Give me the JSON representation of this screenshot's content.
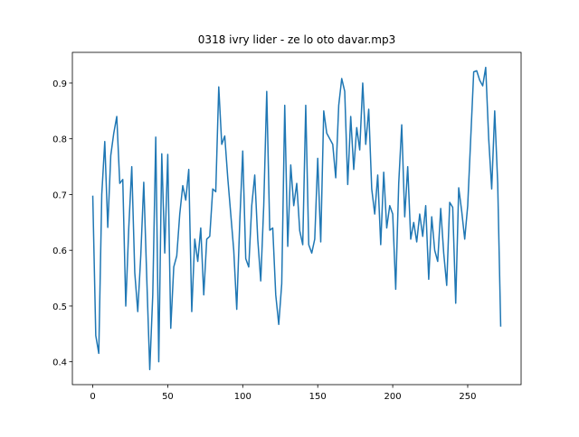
{
  "chart_data": {
    "type": "line",
    "title": "0318 ivry lider - ze lo oto davar.mp3",
    "x": [
      0,
      2,
      4,
      6,
      8,
      10,
      12,
      14,
      16,
      18,
      20,
      22,
      24,
      26,
      28,
      30,
      32,
      34,
      36,
      38,
      40,
      42,
      44,
      46,
      48,
      50,
      52,
      54,
      56,
      58,
      60,
      62,
      64,
      66,
      68,
      70,
      72,
      74,
      76,
      78,
      80,
      82,
      84,
      86,
      88,
      90,
      92,
      94,
      96,
      98,
      100,
      102,
      104,
      106,
      108,
      110,
      112,
      114,
      116,
      118,
      120,
      122,
      124,
      126,
      128,
      130,
      132,
      134,
      136,
      138,
      140,
      142,
      144,
      146,
      148,
      150,
      152,
      154,
      156,
      158,
      160,
      162,
      164,
      166,
      168,
      170,
      172,
      174,
      176,
      178,
      180,
      182,
      184,
      186,
      188,
      190,
      192,
      194,
      196,
      198,
      200,
      202,
      204,
      206,
      208,
      210,
      212,
      214,
      216,
      218,
      220,
      222,
      224,
      226,
      228,
      230,
      232,
      234,
      236,
      238,
      240,
      242,
      244,
      246,
      248,
      250,
      252,
      254,
      256,
      258,
      260,
      262,
      264,
      266,
      268,
      270,
      272
    ],
    "series": [
      {
        "color": "#1f77b4",
        "values": [
          0.698,
          0.447,
          0.415,
          0.7,
          0.795,
          0.641,
          0.77,
          0.81,
          0.84,
          0.72,
          0.727,
          0.5,
          0.64,
          0.75,
          0.56,
          0.49,
          0.59,
          0.722,
          0.55,
          0.386,
          0.52,
          0.803,
          0.4,
          0.773,
          0.595,
          0.772,
          0.46,
          0.57,
          0.59,
          0.665,
          0.716,
          0.69,
          0.745,
          0.49,
          0.62,
          0.58,
          0.64,
          0.52,
          0.62,
          0.625,
          0.71,
          0.705,
          0.893,
          0.79,
          0.805,
          0.73,
          0.665,
          0.6,
          0.494,
          0.65,
          0.778,
          0.585,
          0.57,
          0.68,
          0.735,
          0.62,
          0.545,
          0.68,
          0.885,
          0.636,
          0.64,
          0.52,
          0.467,
          0.54,
          0.86,
          0.607,
          0.753,
          0.68,
          0.72,
          0.635,
          0.61,
          0.86,
          0.61,
          0.595,
          0.62,
          0.765,
          0.615,
          0.85,
          0.81,
          0.8,
          0.79,
          0.73,
          0.86,
          0.908,
          0.885,
          0.718,
          0.84,
          0.745,
          0.82,
          0.78,
          0.9,
          0.79,
          0.853,
          0.71,
          0.665,
          0.735,
          0.61,
          0.74,
          0.64,
          0.68,
          0.665,
          0.53,
          0.72,
          0.825,
          0.66,
          0.75,
          0.62,
          0.65,
          0.615,
          0.665,
          0.625,
          0.68,
          0.548,
          0.66,
          0.6,
          0.58,
          0.675,
          0.595,
          0.537,
          0.686,
          0.677,
          0.505,
          0.712,
          0.67,
          0.62,
          0.68,
          0.8,
          0.92,
          0.922,
          0.905,
          0.895,
          0.928,
          0.8,
          0.71,
          0.85,
          0.72,
          0.463
        ]
      }
    ],
    "xlim": [
      -13.6,
      285.6
    ],
    "xticks": [
      0,
      50,
      100,
      150,
      200,
      250
    ],
    "ylim": [
      0.359,
      0.955
    ],
    "yticks": [
      0.4,
      0.5,
      0.6,
      0.7,
      0.8,
      0.9
    ]
  }
}
